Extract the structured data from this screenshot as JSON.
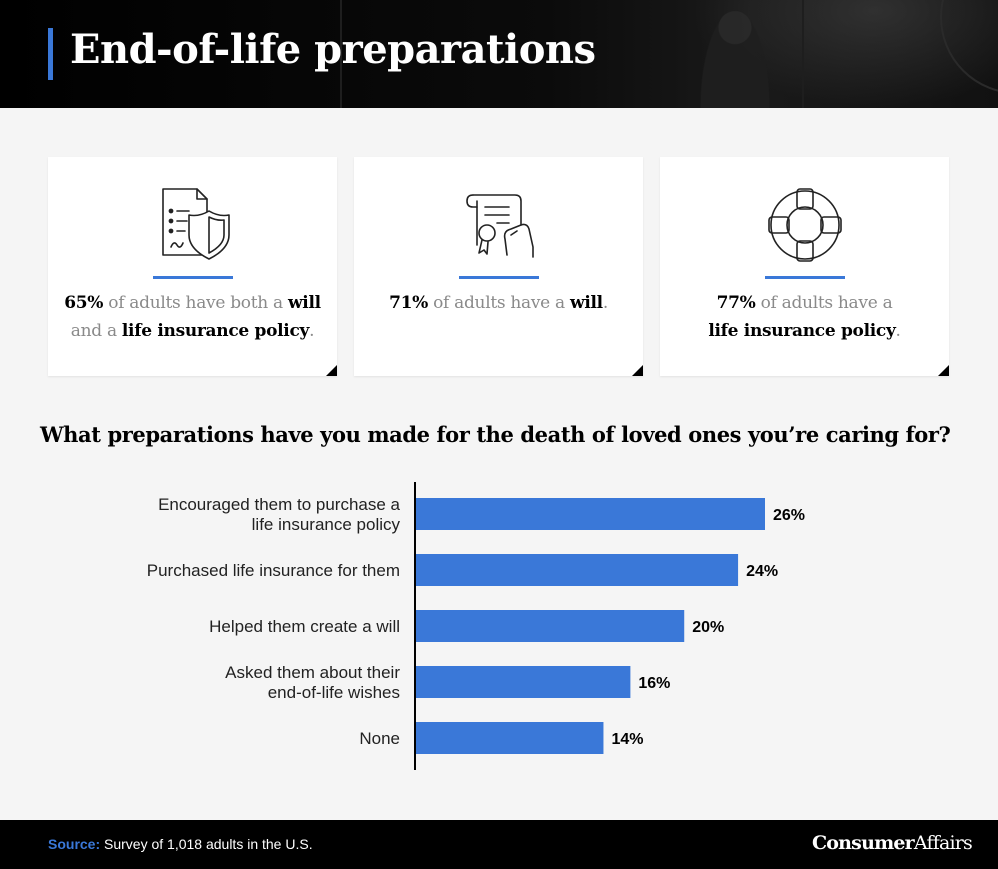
{
  "header": {
    "title": "End-of-life preparations"
  },
  "cards": [
    {
      "icon": "document-shield-icon",
      "pct": "65%",
      "parts": [
        " of adults have both a ",
        "will",
        "and a ",
        "life insurance policy",
        "."
      ]
    },
    {
      "icon": "scroll-certificate-icon",
      "pct": "71%",
      "parts": [
        " of adults have a ",
        "will",
        "."
      ]
    },
    {
      "icon": "life-preserver-icon",
      "pct": "77%",
      "parts": [
        " of adults have a",
        "life insurance policy",
        "."
      ]
    }
  ],
  "question": "What preparations have you made for the death of loved ones you’re caring for?",
  "colors": {
    "accent": "#3a78d8",
    "bar": "#3a78d8"
  },
  "chart_data": {
    "type": "bar",
    "orientation": "horizontal",
    "categories": [
      [
        "Encouraged them to purchase a",
        "life insurance policy"
      ],
      [
        "Purchased life insurance for them"
      ],
      [
        "Helped them create a will"
      ],
      [
        "Asked them about their",
        "end-of-life wishes"
      ],
      [
        "None"
      ]
    ],
    "values": [
      26,
      24,
      20,
      16,
      14
    ],
    "value_labels": [
      "26%",
      "24%",
      "20%",
      "16%",
      "14%"
    ],
    "unit": "%",
    "xlim": [
      0,
      30
    ],
    "grid": false,
    "legend": "none"
  },
  "footer": {
    "source_label": "Source:",
    "source_text": " Survey of 1,018 adults in the U.S.",
    "brand_bold": "Consumer",
    "brand_regular": "Affairs"
  }
}
